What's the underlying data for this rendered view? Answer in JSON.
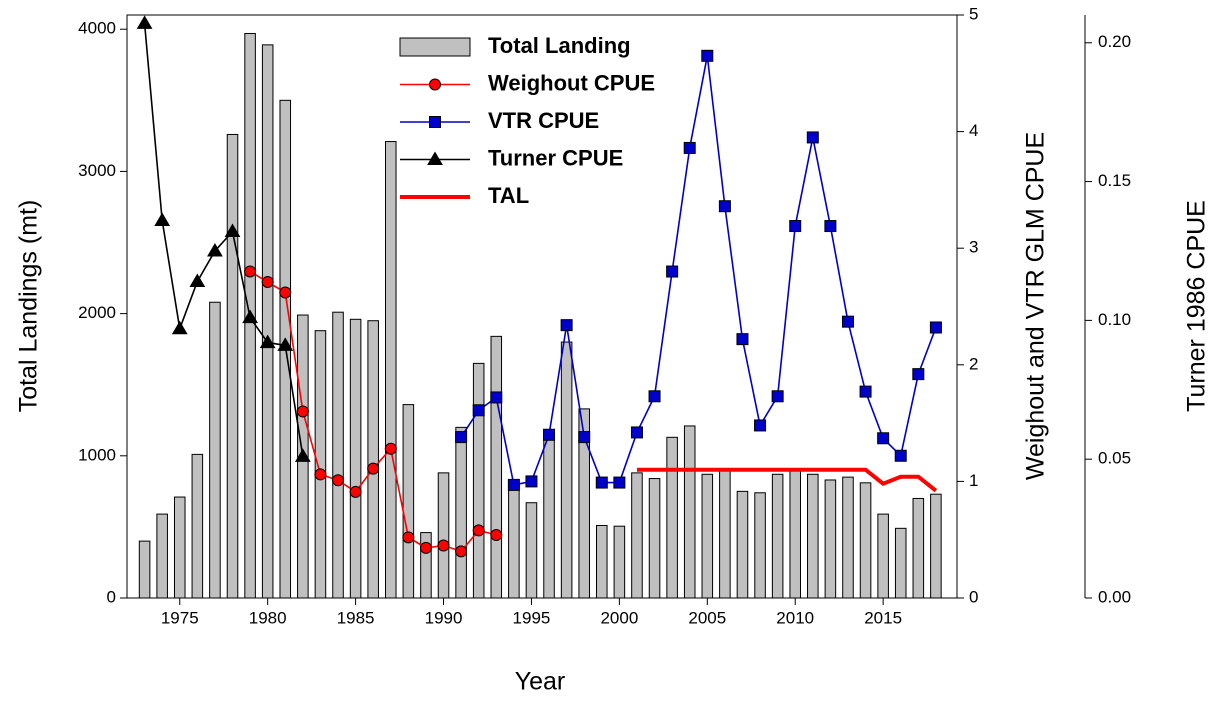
{
  "chart_data": {
    "type": "bar",
    "x_label": "Year",
    "y_label": "Total Landings (mt)",
    "y2_label": "Weighout and VTR GLM CPUE",
    "y3_label": "Turner 1986 CPUE",
    "x": [
      1973,
      1974,
      1975,
      1976,
      1977,
      1978,
      1979,
      1980,
      1981,
      1982,
      1983,
      1984,
      1985,
      1986,
      1987,
      1988,
      1989,
      1990,
      1991,
      1992,
      1993,
      1994,
      1995,
      1996,
      1997,
      1998,
      1999,
      2000,
      2001,
      2002,
      2003,
      2004,
      2005,
      2006,
      2007,
      2008,
      2009,
      2010,
      2011,
      2012,
      2013,
      2014,
      2015,
      2016,
      2017,
      2018
    ],
    "series": [
      {
        "name": "Total Landing",
        "type": "bar",
        "color": "#c0c0c0",
        "values": [
          400,
          590,
          710,
          1010,
          2080,
          3260,
          3970,
          3890,
          3500,
          1990,
          1880,
          2010,
          1960,
          1950,
          3210,
          1360,
          460,
          880,
          1200,
          1650,
          1840,
          800,
          670,
          1150,
          1800,
          1330,
          510,
          505,
          880,
          840,
          1130,
          1210,
          870,
          900,
          750,
          740,
          870,
          900,
          870,
          830,
          850,
          810,
          590,
          490,
          700,
          730
        ]
      },
      {
        "name": "Weighout CPUE",
        "type": "line",
        "marker": "circle",
        "color": "#ff0000",
        "axis": "y2",
        "values": [
          null,
          null,
          null,
          null,
          null,
          null,
          2.8,
          2.71,
          2.62,
          1.6,
          1.06,
          1.01,
          0.91,
          1.11,
          1.28,
          0.52,
          0.43,
          0.45,
          0.4,
          0.58,
          0.54,
          null,
          null,
          null,
          null,
          null,
          null,
          null,
          null,
          null,
          null,
          null,
          null,
          null,
          null,
          null,
          null,
          null,
          null,
          null,
          null,
          null,
          null,
          null,
          null,
          null
        ]
      },
      {
        "name": "VTR CPUE",
        "type": "line",
        "marker": "square",
        "color": "#0000cc",
        "axis": "y2",
        "values": [
          null,
          null,
          null,
          null,
          null,
          null,
          null,
          null,
          null,
          null,
          null,
          null,
          null,
          null,
          null,
          null,
          null,
          null,
          1.38,
          1.61,
          1.72,
          0.97,
          1.0,
          1.4,
          2.34,
          1.38,
          0.99,
          0.99,
          1.42,
          1.73,
          2.8,
          3.86,
          4.65,
          3.36,
          2.22,
          1.48,
          1.73,
          3.19,
          3.95,
          3.19,
          2.37,
          1.77,
          1.37,
          1.22,
          1.92,
          2.32
        ]
      },
      {
        "name": "Turner CPUE",
        "type": "line",
        "marker": "triangle",
        "color": "#000000",
        "axis": "y3",
        "values": [
          0.207,
          0.136,
          0.097,
          0.114,
          0.125,
          0.132,
          0.101,
          0.092,
          0.091,
          0.051,
          null,
          null,
          null,
          null,
          null,
          null,
          null,
          null,
          null,
          null,
          null,
          null,
          null,
          null,
          null,
          null,
          null,
          null,
          null,
          null,
          null,
          null,
          null,
          null,
          null,
          null,
          null,
          null,
          null,
          null,
          null,
          null,
          null,
          null,
          null,
          null
        ]
      },
      {
        "name": "TAL",
        "type": "line",
        "marker": "none",
        "color": "#ff0000",
        "axis": "y2",
        "values": [
          null,
          null,
          null,
          null,
          null,
          null,
          null,
          null,
          null,
          null,
          null,
          null,
          null,
          null,
          null,
          null,
          null,
          null,
          null,
          null,
          null,
          null,
          null,
          null,
          null,
          null,
          null,
          null,
          1.1,
          1.1,
          1.1,
          1.1,
          1.1,
          1.1,
          1.1,
          1.1,
          1.1,
          1.1,
          1.1,
          1.1,
          1.1,
          1.1,
          0.98,
          1.04,
          1.04,
          0.92
        ]
      }
    ],
    "xlim": [
      1972,
      2019.2
    ],
    "xticks": [
      1975,
      1980,
      1985,
      1990,
      1995,
      2000,
      2005,
      2010,
      2015
    ],
    "ylim": [
      0,
      4100
    ],
    "yticks": [
      0,
      1000,
      2000,
      3000,
      4000
    ],
    "y2lim": [
      0,
      5
    ],
    "y2ticks": [
      0,
      1,
      2,
      3,
      4,
      5
    ],
    "y3lim": [
      0,
      0.21
    ],
    "y3ticks": [
      {
        "value": 0,
        "label": "0.00"
      },
      0.05,
      {
        "value": 0.1,
        "label": "0.10"
      },
      0.15,
      {
        "value": 0.2,
        "label": "0.20"
      }
    ],
    "legend": "top-center"
  }
}
